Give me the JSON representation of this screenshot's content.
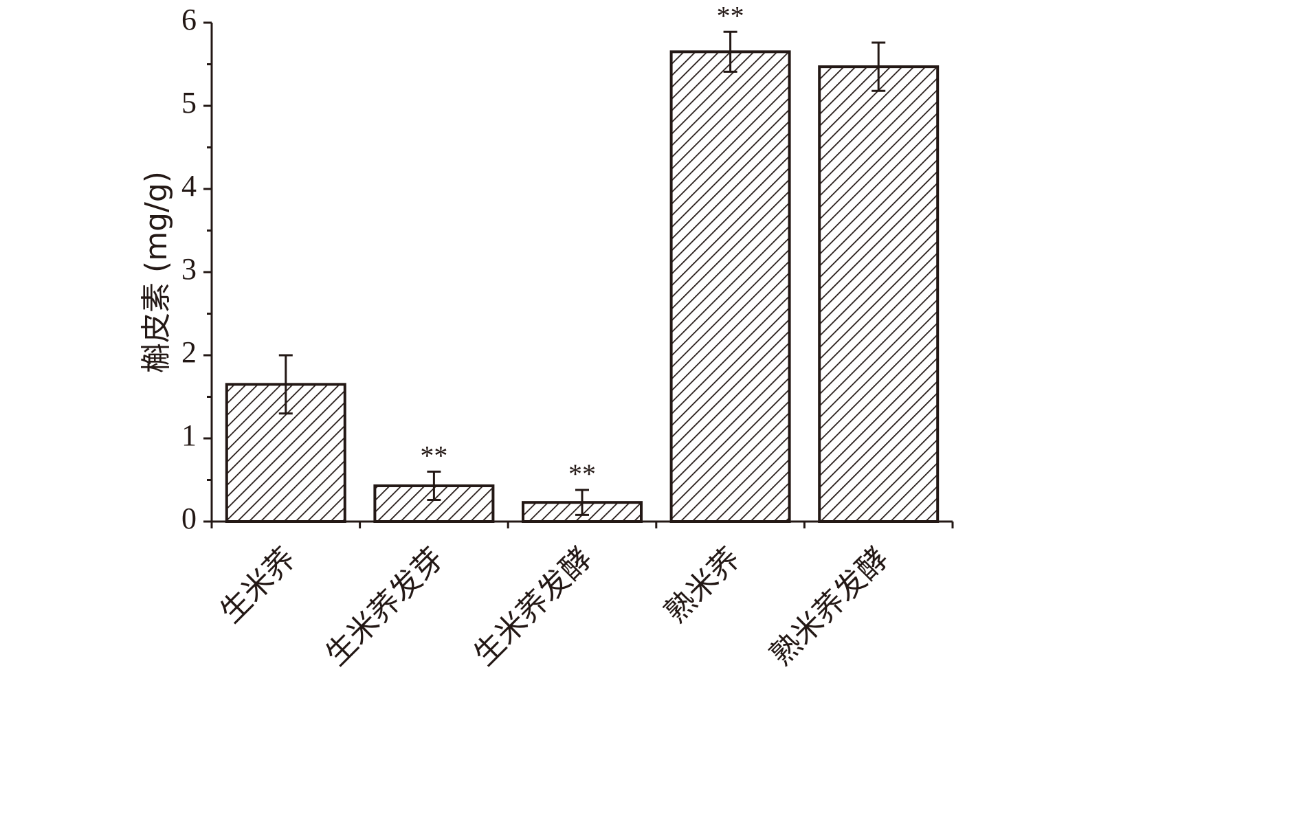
{
  "chart_data": {
    "type": "bar",
    "categories": [
      "生米荞",
      "生米荞发芽",
      "生米荞发酵",
      "熟米荞",
      "熟米荞发酵"
    ],
    "series": [
      {
        "values": [
          1.65,
          0.43,
          0.23,
          5.65,
          5.47
        ],
        "error": [
          0.35,
          0.17,
          0.15,
          0.24,
          0.29
        ],
        "significance": [
          "",
          "**",
          "**",
          "**",
          ""
        ]
      }
    ],
    "title": "",
    "xlabel": "",
    "ylabel": "槲皮素 (mg/g)",
    "ylim": [
      0,
      6
    ],
    "yticks": [
      "0",
      "1",
      "2",
      "3",
      "4",
      "5",
      "6"
    ],
    "yminor_step": 0.5,
    "grid": false,
    "bar_fill": "diagonal-hatch",
    "colors": {
      "ink": "#231815",
      "background": "#ffffff"
    }
  }
}
